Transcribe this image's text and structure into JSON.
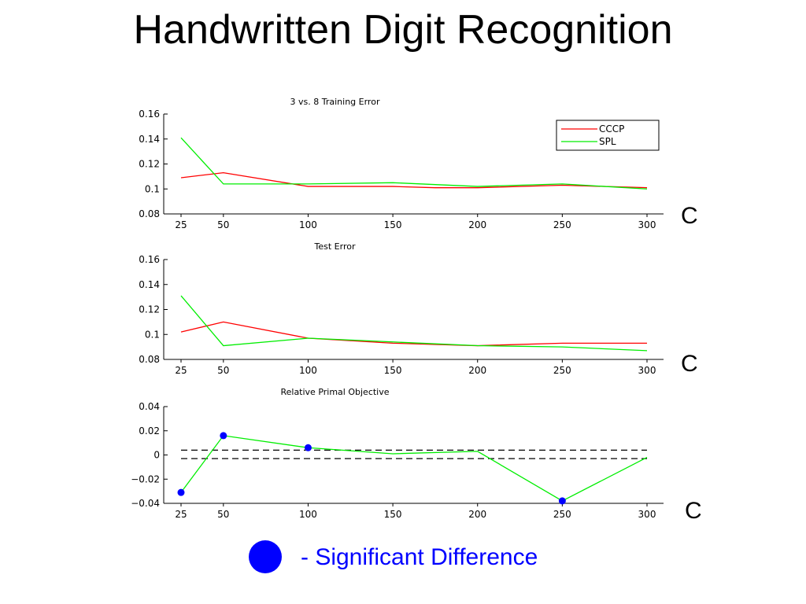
{
  "slide": {
    "title": "Handwritten Digit Recognition",
    "c_labels": [
      "C",
      "C",
      "C"
    ],
    "legend_text": "- Significant Difference",
    "legend_dot_color": "#0000ff"
  },
  "chart_data": [
    {
      "type": "line",
      "title": "3 vs. 8 Training Error",
      "x": [
        25,
        50,
        100,
        150,
        200,
        250,
        300
      ],
      "xticks": [
        "25",
        "50",
        "100",
        "150",
        "200",
        "250",
        "300"
      ],
      "xlim": [
        0,
        300
      ],
      "ylim": [
        0.08,
        0.16
      ],
      "yticks": [
        "0.08",
        "0.1",
        "0.12",
        "0.14",
        "0.16"
      ],
      "legend": "top-right",
      "grid": false,
      "series": [
        {
          "name": "CCCP",
          "color": "#ff0000",
          "points": [
            [
              25,
              0.109
            ],
            [
              50,
              0.113
            ],
            [
              100,
              0.102
            ],
            [
              150,
              0.102
            ],
            [
              175,
              0.101
            ],
            [
              200,
              0.101
            ],
            [
              250,
              0.103
            ],
            [
              300,
              0.101
            ]
          ]
        },
        {
          "name": "SPL",
          "color": "#00ee00",
          "points": [
            [
              25,
              0.141
            ],
            [
              50,
              0.104
            ],
            [
              100,
              0.104
            ],
            [
              150,
              0.105
            ],
            [
              200,
              0.102
            ],
            [
              250,
              0.104
            ],
            [
              300,
              0.1
            ]
          ]
        }
      ]
    },
    {
      "type": "line",
      "title": "Test Error",
      "x": [
        25,
        50,
        100,
        150,
        200,
        250,
        300
      ],
      "xticks": [
        "25",
        "50",
        "100",
        "150",
        "200",
        "250",
        "300"
      ],
      "xlim": [
        0,
        300
      ],
      "ylim": [
        0.08,
        0.16
      ],
      "yticks": [
        "0.08",
        "0.1",
        "0.12",
        "0.14",
        "0.16"
      ],
      "grid": false,
      "series": [
        {
          "color": "#ff0000",
          "points": [
            [
              25,
              0.102
            ],
            [
              50,
              0.11
            ],
            [
              100,
              0.097
            ],
            [
              150,
              0.093
            ],
            [
              200,
              0.091
            ],
            [
              250,
              0.093
            ],
            [
              300,
              0.093
            ]
          ]
        },
        {
          "color": "#00ee00",
          "points": [
            [
              25,
              0.131
            ],
            [
              50,
              0.091
            ],
            [
              100,
              0.097
            ],
            [
              150,
              0.094
            ],
            [
              200,
              0.091
            ],
            [
              250,
              0.09
            ],
            [
              300,
              0.087
            ]
          ]
        }
      ]
    },
    {
      "type": "line",
      "title": "Relative Primal Objective",
      "x": [
        25,
        50,
        100,
        150,
        200,
        250,
        300
      ],
      "xticks": [
        "25",
        "50",
        "100",
        "150",
        "200",
        "250",
        "300"
      ],
      "xlim": [
        0,
        300
      ],
      "ylim": [
        -0.04,
        0.04
      ],
      "yticks": [
        "−0.04",
        "−0.02",
        "0",
        "0.02",
        "0.04"
      ],
      "grid": false,
      "series": [
        {
          "color": "#00ee00",
          "points": [
            [
              25,
              -0.031
            ],
            [
              50,
              0.016
            ],
            [
              100,
              0.006
            ],
            [
              150,
              0.001
            ],
            [
              200,
              0.003
            ],
            [
              250,
              -0.038
            ],
            [
              300,
              -0.002
            ]
          ]
        }
      ],
      "significant_points": [
        [
          25,
          -0.031
        ],
        [
          50,
          0.016
        ],
        [
          100,
          0.006
        ],
        [
          250,
          -0.038
        ]
      ],
      "reference_lines": [
        0.004,
        -0.003
      ]
    }
  ]
}
